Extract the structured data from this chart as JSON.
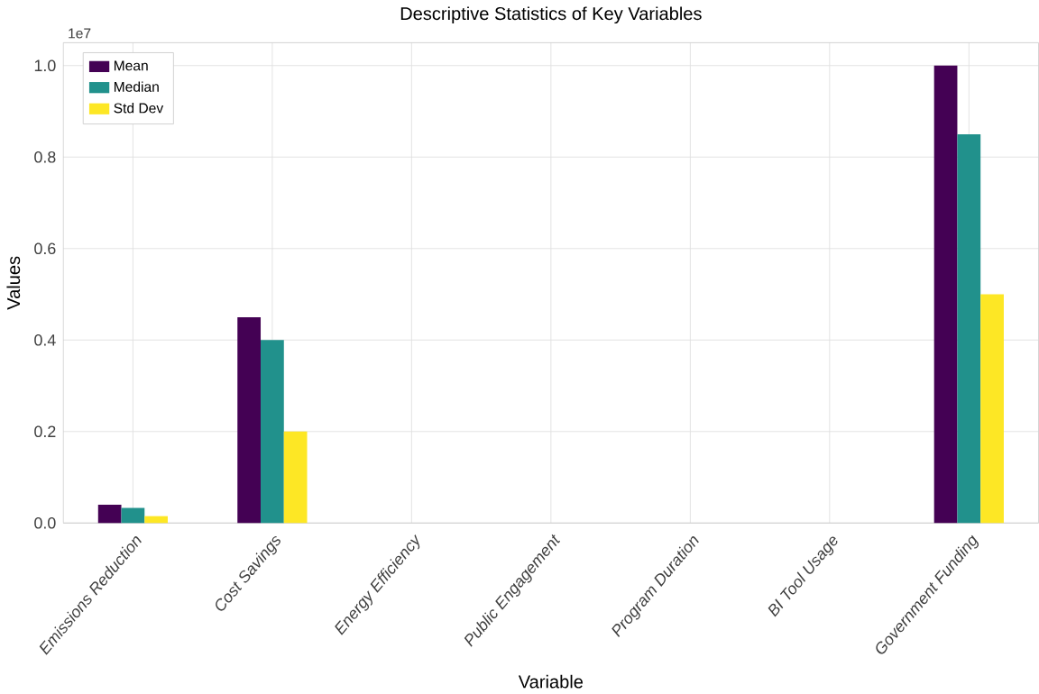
{
  "chart_data": {
    "type": "bar",
    "title": "Descriptive Statistics of Key Variables",
    "xlabel": "Variable",
    "ylabel": "Values",
    "categories": [
      "Emissions Reduction",
      "Cost Savings",
      "Energy Efficiency",
      "Public Engagement",
      "Program Duration",
      "BI Tool Usage",
      "Government Funding"
    ],
    "series": [
      {
        "name": "Mean",
        "color": "#440154",
        "values": [
          0.04,
          0.45,
          0,
          0,
          0,
          0,
          1.0
        ]
      },
      {
        "name": "Median",
        "color": "#21918c",
        "values": [
          0.033,
          0.4,
          0,
          0,
          0,
          0,
          0.85
        ]
      },
      {
        "name": "Std Dev",
        "color": "#fde725",
        "values": [
          0.015,
          0.2,
          0,
          0,
          0,
          0,
          0.5
        ]
      }
    ],
    "ylim": [
      0,
      1.05
    ],
    "yticks": [
      {
        "value": 0,
        "label": "0.0"
      },
      0.2,
      0.4,
      0.6,
      0.8,
      {
        "value": 1.0,
        "label": "1.0"
      }
    ],
    "annotations": [
      "1e7"
    ],
    "grid": true,
    "legend": "top left"
  }
}
